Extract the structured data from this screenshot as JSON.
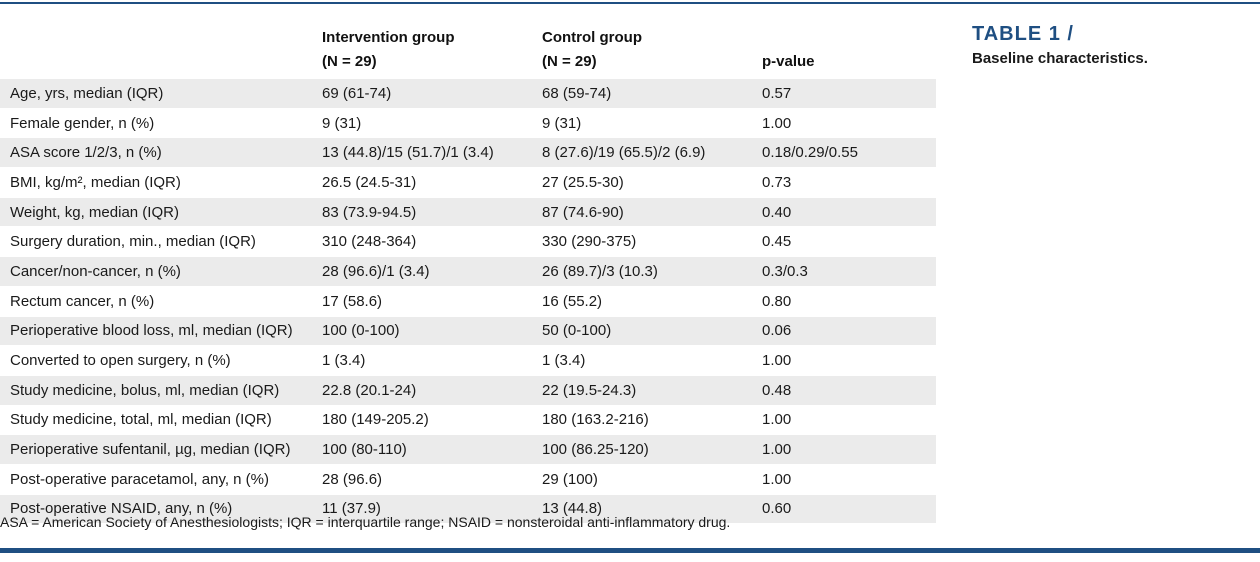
{
  "table": {
    "headers": [
      {
        "line1": "",
        "line2": ""
      },
      {
        "line1": "Intervention group",
        "line2": "(N = 29)"
      },
      {
        "line1": "Control group",
        "line2": "(N = 29)"
      },
      {
        "line1": "",
        "line2": "p-value"
      }
    ],
    "rows": [
      [
        "Age, yrs, median (IQR)",
        "69 (61-74)",
        "68 (59-74)",
        "0.57"
      ],
      [
        "Female gender, n (%)",
        "9 (31)",
        "9 (31)",
        "1.00"
      ],
      [
        "ASA score 1/2/3, n (%)",
        "13 (44.8)/15 (51.7)/1 (3.4)",
        "8 (27.6)/19 (65.5)/2 (6.9)",
        "0.18/0.29/0.55"
      ],
      [
        "BMI, kg/m², median (IQR)",
        "26.5 (24.5-31)",
        "27 (25.5-30)",
        "0.73"
      ],
      [
        "Weight, kg, median (IQR)",
        "83 (73.9-94.5)",
        "87 (74.6-90)",
        "0.40"
      ],
      [
        "Surgery duration, min., median (IQR)",
        "310 (248-364)",
        "330 (290-375)",
        "0.45"
      ],
      [
        "Cancer/non-cancer, n (%)",
        "28 (96.6)/1 (3.4)",
        "26 (89.7)/3 (10.3)",
        "0.3/0.3"
      ],
      [
        "Rectum cancer, n (%)",
        "17 (58.6)",
        "16 (55.2)",
        "0.80"
      ],
      [
        "Perioperative blood loss, ml, median (IQR)",
        "100 (0-100)",
        "50 (0-100)",
        "0.06"
      ],
      [
        "Converted to open surgery, n (%)",
        "1 (3.4)",
        "1 (3.4)",
        "1.00"
      ],
      [
        "Study medicine, bolus, ml, median (IQR)",
        "22.8 (20.1-24)",
        "22 (19.5-24.3)",
        "0.48"
      ],
      [
        "Study medicine, total, ml, median (IQR)",
        "180 (149-205.2)",
        "180 (163.2-216)",
        "1.00"
      ],
      [
        "Perioperative sufentanil, µg, median (IQR)",
        "100 (80-110)",
        "100 (86.25-120)",
        "1.00"
      ],
      [
        "Post-operative paracetamol, any, n (%)",
        "28 (96.6)",
        "29 (100)",
        "1.00"
      ],
      [
        "Post-operative NSAID, any, n (%)",
        "11 (37.9)",
        "13 (44.8)",
        "0.60"
      ]
    ]
  },
  "footnote": "ASA = American Society of Anesthesiologists; IQR = interquartile range; NSAID = nonsteroidal anti-inflammatory drug.",
  "caption": {
    "title": "TABLE 1 /",
    "subtitle": "Baseline characteristics."
  },
  "colors": {
    "accent": "#1f4f82",
    "row_shade": "#ebebeb"
  }
}
